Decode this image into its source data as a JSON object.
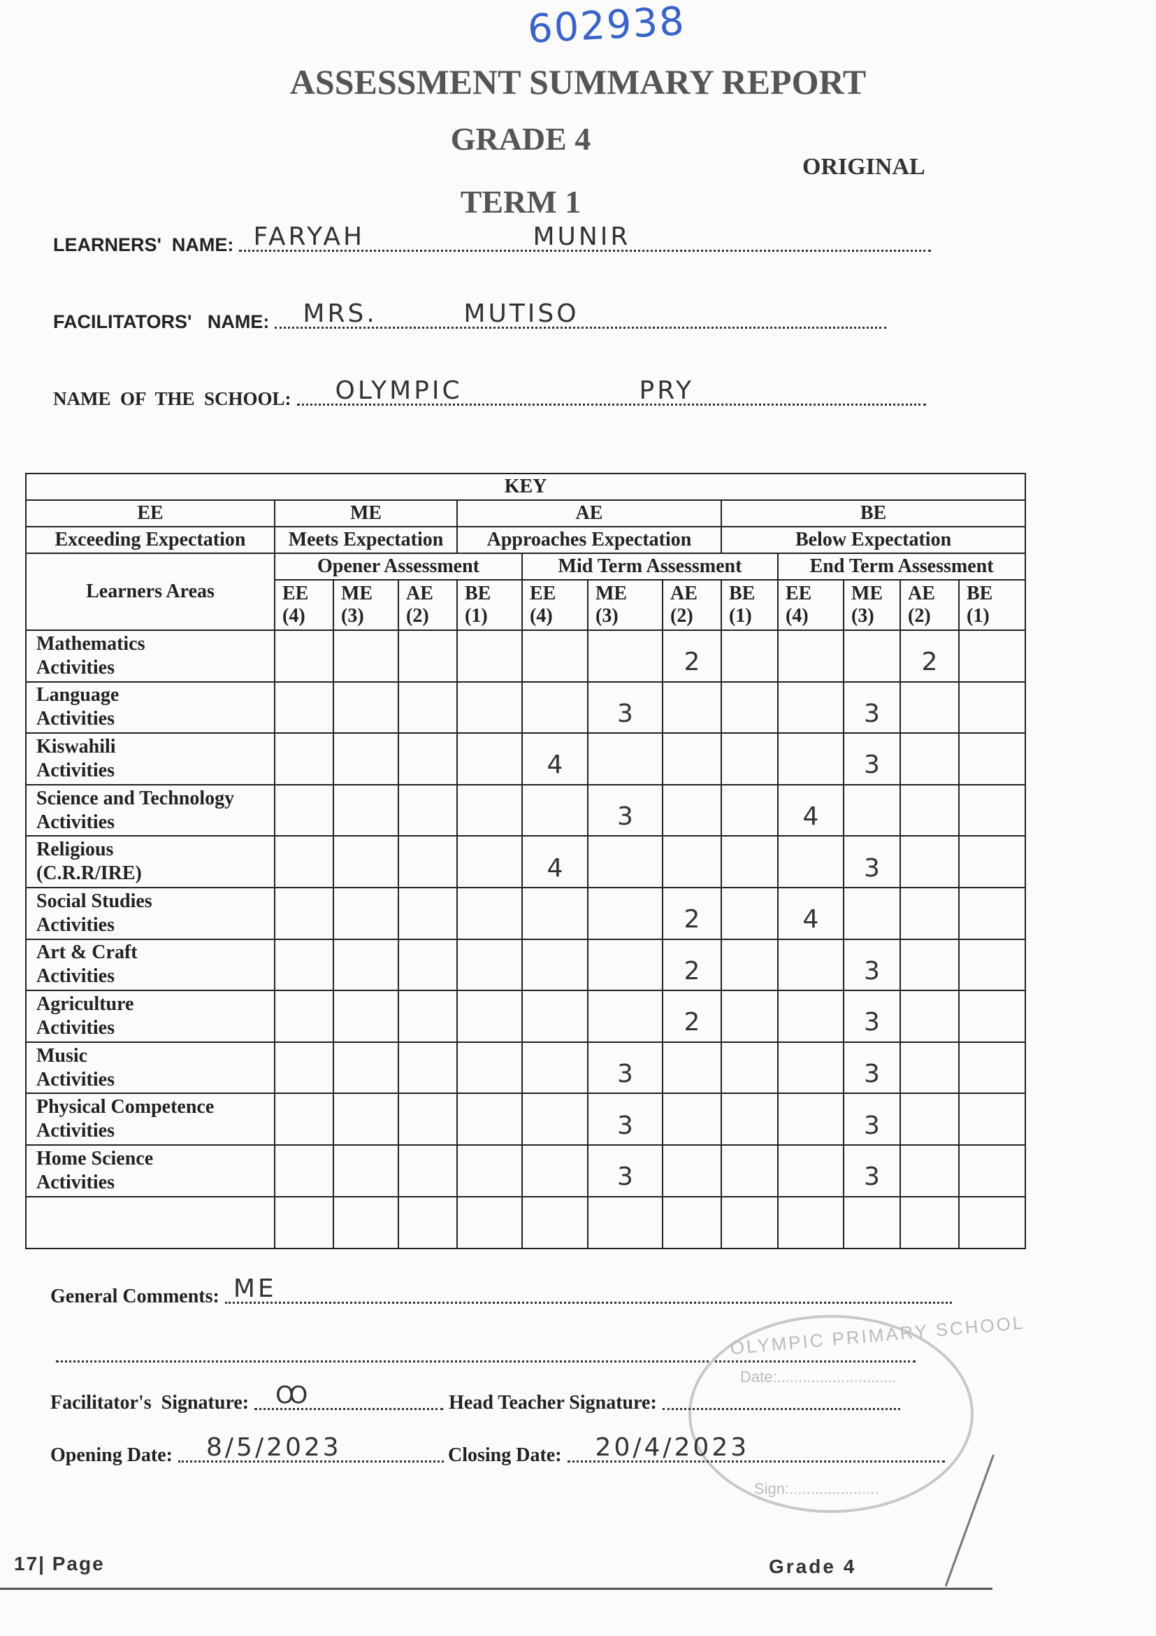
{
  "serial_number": "602938",
  "header": {
    "title": "ASSESSMENT SUMMARY REPORT",
    "grade": "GRADE 4",
    "term": "TERM 1",
    "copy_label": "ORIGINAL"
  },
  "fields": {
    "learner_label": "LEARNERS'  NAME:",
    "learner_first": "FARYAH",
    "learner_last": "MUNIR",
    "facilitator_label": "FACILITATORS'   NAME:",
    "facilitator_title": "MRS.",
    "facilitator_name": "MUTISO",
    "school_label": "NAME  OF  THE  SCHOOL:",
    "school_name": "OLYMPIC",
    "school_suffix": "PRY"
  },
  "key": {
    "title": "KEY",
    "items": [
      {
        "code": "EE",
        "meaning": "Exceeding Expectation"
      },
      {
        "code": "ME",
        "meaning": "Meets Expectation"
      },
      {
        "code": "AE",
        "meaning": "Approaches Expectation"
      },
      {
        "code": "BE",
        "meaning": "Below Expectation"
      }
    ]
  },
  "table": {
    "area_header": "Learners Areas",
    "assessments": [
      "Opener Assessment",
      "Mid Term Assessment",
      "End Term Assessment"
    ],
    "levels": [
      {
        "code": "EE",
        "score": "(4)"
      },
      {
        "code": "ME",
        "score": "(3)"
      },
      {
        "code": "AE",
        "score": "(2)"
      },
      {
        "code": "BE",
        "score": "(1)"
      }
    ],
    "rows": [
      {
        "area": [
          "Mathematics",
          "Activities"
        ],
        "opener": [
          "",
          "",
          "",
          ""
        ],
        "mid": [
          "",
          "",
          "2",
          ""
        ],
        "end": [
          "",
          "",
          "2",
          ""
        ]
      },
      {
        "area": [
          "Language",
          "Activities"
        ],
        "opener": [
          "",
          "",
          "",
          ""
        ],
        "mid": [
          "",
          "3",
          "",
          ""
        ],
        "end": [
          "",
          "3",
          "",
          ""
        ]
      },
      {
        "area": [
          "Kiswahili",
          "Activities"
        ],
        "opener": [
          "",
          "",
          "",
          ""
        ],
        "mid": [
          "4",
          "",
          "",
          ""
        ],
        "end": [
          "",
          "3",
          "",
          ""
        ]
      },
      {
        "area": [
          "Science and Technology",
          "Activities"
        ],
        "opener": [
          "",
          "",
          "",
          ""
        ],
        "mid": [
          "",
          "3",
          "",
          ""
        ],
        "end": [
          "4",
          "",
          "",
          ""
        ]
      },
      {
        "area": [
          "Religious",
          "(C.R.R/IRE)"
        ],
        "opener": [
          "",
          "",
          "",
          ""
        ],
        "mid": [
          "4",
          "",
          "",
          ""
        ],
        "end": [
          "",
          "3",
          "",
          ""
        ]
      },
      {
        "area": [
          "Social Studies",
          "Activities"
        ],
        "opener": [
          "",
          "",
          "",
          ""
        ],
        "mid": [
          "",
          "",
          "2",
          ""
        ],
        "end": [
          "4",
          "",
          "",
          ""
        ]
      },
      {
        "area": [
          "Art & Craft",
          "Activities"
        ],
        "opener": [
          "",
          "",
          "",
          ""
        ],
        "mid": [
          "",
          "",
          "2",
          ""
        ],
        "end": [
          "",
          "3",
          "",
          ""
        ]
      },
      {
        "area": [
          "Agriculture",
          "Activities"
        ],
        "opener": [
          "",
          "",
          "",
          ""
        ],
        "mid": [
          "",
          "",
          "2",
          ""
        ],
        "end": [
          "",
          "3",
          "",
          ""
        ]
      },
      {
        "area": [
          "Music",
          "Activities"
        ],
        "opener": [
          "",
          "",
          "",
          ""
        ],
        "mid": [
          "",
          "3",
          "",
          ""
        ],
        "end": [
          "",
          "3",
          "",
          ""
        ]
      },
      {
        "area": [
          "Physical Competence",
          "Activities"
        ],
        "opener": [
          "",
          "",
          "",
          ""
        ],
        "mid": [
          "",
          "3",
          "",
          ""
        ],
        "end": [
          "",
          "3",
          "",
          ""
        ]
      },
      {
        "area": [
          "Home Science",
          "Activities"
        ],
        "opener": [
          "",
          "",
          "",
          ""
        ],
        "mid": [
          "",
          "3",
          "",
          ""
        ],
        "end": [
          "",
          "3",
          "",
          ""
        ]
      },
      {
        "area": [
          "",
          ""
        ],
        "opener": [
          "",
          "",
          "",
          ""
        ],
        "mid": [
          "",
          "",
          "",
          ""
        ],
        "end": [
          "",
          "",
          "",
          ""
        ]
      }
    ]
  },
  "footer_section": {
    "comments_label": "General Comments:",
    "comments_value": "ME",
    "facilitator_sig_label": "Facilitator's  Signature:",
    "head_sig_label": "Head Teacher Signature:",
    "opening_label": "Opening Date:",
    "opening_value": "8/5/2023",
    "closing_label": "Closing Date:",
    "closing_value": "20/4/2023"
  },
  "stamp": {
    "text": "OLYMPIC PRIMARY SCHOOL",
    "date_label": "Date:",
    "sign_label": "Sign:"
  },
  "page": {
    "page_label": "17| Page",
    "grade_label": "Grade 4"
  }
}
